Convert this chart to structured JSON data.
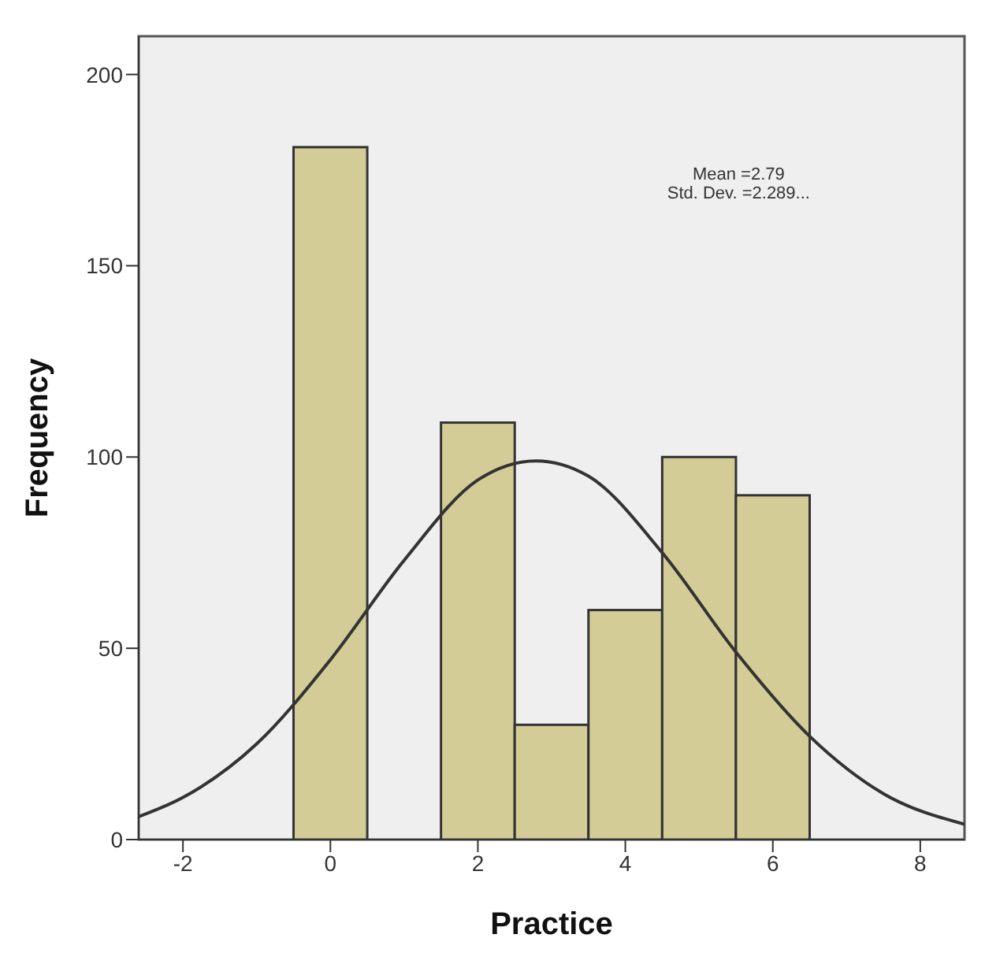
{
  "chart_data": {
    "type": "histogram",
    "xlabel": "Practice",
    "ylabel": "Frequency",
    "bins": [
      -0.5,
      0.5,
      1.5,
      2.5,
      3.5,
      4.5,
      5.5,
      6.5
    ],
    "values": [
      181,
      0,
      109,
      30,
      60,
      100,
      90
    ],
    "color": "#d4cc97",
    "series": [
      {
        "type": "line",
        "x": [
          -2.6,
          -2,
          -1,
          0,
          1,
          2,
          2.79,
          3.5,
          4.5,
          5.5,
          6.5,
          7.5,
          8.6
        ],
        "values": [
          6,
          11,
          25,
          47,
          73,
          94,
          99,
          95,
          75,
          49,
          27,
          12,
          4
        ],
        "color": "#333333"
      }
    ],
    "xlim": [
      -2.6,
      8.6
    ],
    "ylim": [
      0,
      210
    ],
    "xticks": [
      -2,
      0,
      2,
      4,
      6,
      8
    ],
    "yticks": [
      0,
      50,
      100,
      150,
      200
    ],
    "annotations": [
      "Mean =2.79",
      "Std. Dev. =2.289..."
    ]
  }
}
